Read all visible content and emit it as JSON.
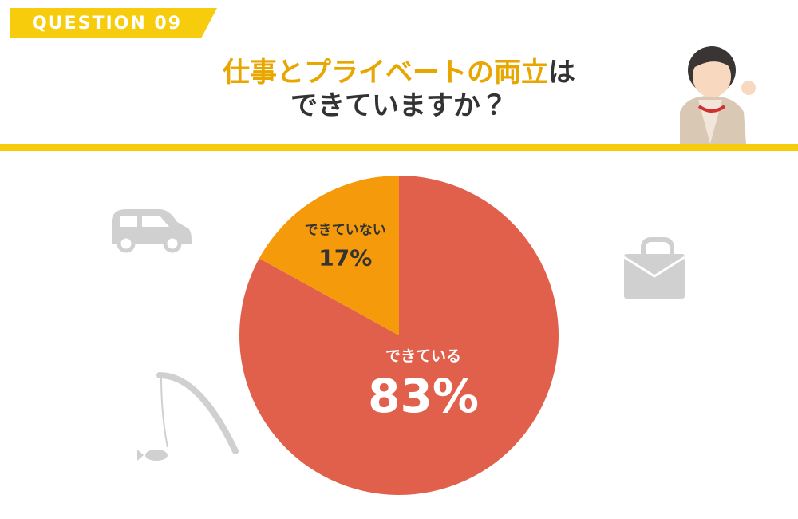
{
  "header": {
    "badge": "QUESTION 09",
    "title_highlight": "仕事とプライベートの両立",
    "title_rest": "は",
    "title_line2": "できていますか？"
  },
  "chart_data": {
    "type": "pie",
    "categories": [
      "できている",
      "できていない"
    ],
    "values": [
      83,
      17
    ],
    "value_labels": [
      "83%",
      "17%"
    ],
    "colors": [
      "#e0604c",
      "#f59a0a"
    ]
  }
}
